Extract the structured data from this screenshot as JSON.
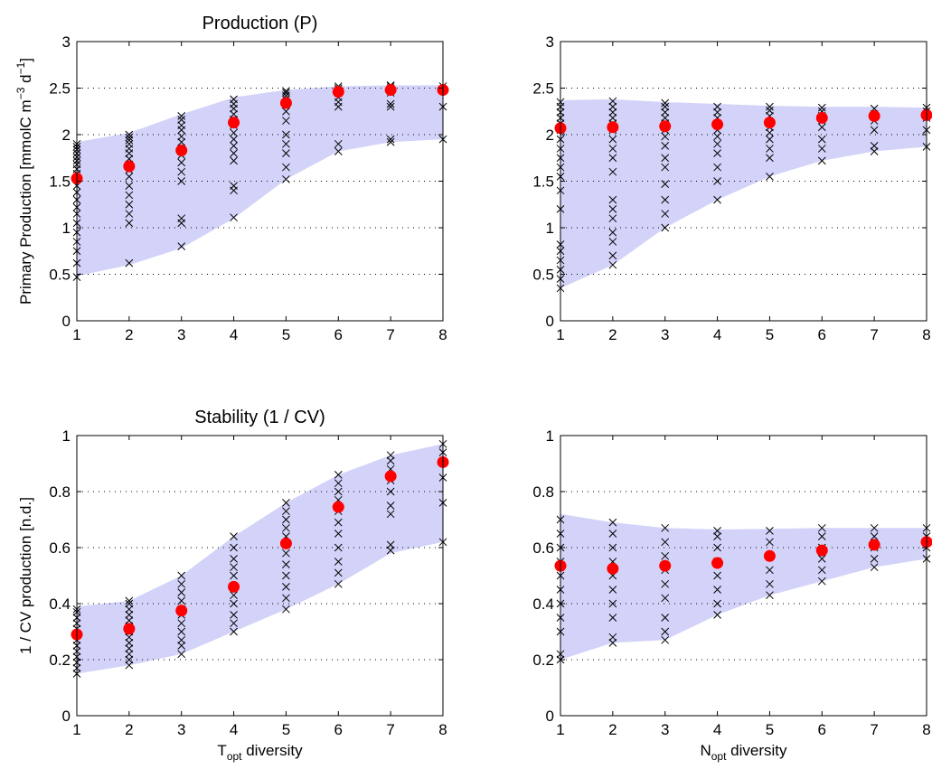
{
  "chart_data": [
    {
      "type": "scatter",
      "title": "Production (P)",
      "xlabel": "",
      "ylabel": "Primary Production [mmolC m^-3 d^-1]",
      "ylabel_parts": {
        "main": "Primary Production [mmolC m",
        "exp1": "−3",
        "mid": " d",
        "exp2": "−1",
        "end": "]"
      },
      "xlim": [
        1,
        8
      ],
      "ylim": [
        0,
        3
      ],
      "xticks": [
        1,
        2,
        3,
        4,
        5,
        6,
        7,
        8
      ],
      "yticks": [
        0,
        0.5,
        1,
        1.5,
        2,
        2.5,
        3
      ],
      "ytick_labels": [
        "0",
        "0.5",
        "1",
        "1.5",
        "2",
        "2.5",
        "3"
      ],
      "grid": "y-dotted",
      "band": {
        "x": [
          1,
          2,
          3,
          4,
          5,
          6,
          7,
          8
        ],
        "lower": [
          0.48,
          0.6,
          0.78,
          1.1,
          1.52,
          1.82,
          1.92,
          1.95
        ],
        "upper": [
          1.92,
          2.02,
          2.22,
          2.4,
          2.48,
          2.52,
          2.53,
          2.53
        ]
      },
      "means": {
        "x": [
          1,
          2,
          3,
          4,
          5,
          6,
          7,
          8
        ],
        "y": [
          1.53,
          1.66,
          1.83,
          2.13,
          2.34,
          2.46,
          2.48,
          2.48
        ]
      },
      "samples": [
        {
          "x": 1,
          "y": [
            0.47,
            0.62,
            0.75,
            0.85,
            0.95,
            1.05,
            1.15,
            1.22,
            1.3,
            1.38,
            1.45,
            1.52,
            1.58,
            1.63,
            1.68,
            1.72,
            1.76,
            1.8,
            1.84,
            1.87,
            1.9
          ]
        },
        {
          "x": 2,
          "y": [
            0.62,
            1.05,
            1.15,
            1.25,
            1.35,
            1.45,
            1.55,
            1.62,
            1.68,
            1.74,
            1.8,
            1.85,
            1.9,
            1.94,
            1.97,
            2.0
          ]
        },
        {
          "x": 3,
          "y": [
            0.8,
            1.05,
            1.1,
            1.5,
            1.6,
            1.7,
            1.78,
            1.85,
            1.92,
            1.98,
            2.05,
            2.1,
            2.16,
            2.2
          ]
        },
        {
          "x": 4,
          "y": [
            1.11,
            1.4,
            1.45,
            1.72,
            1.8,
            1.88,
            1.95,
            2.02,
            2.1,
            2.16,
            2.22,
            2.28,
            2.33,
            2.38
          ]
        },
        {
          "x": 5,
          "y": [
            1.52,
            1.65,
            1.8,
            1.9,
            2.0,
            2.15,
            2.25,
            2.32,
            2.38,
            2.42,
            2.45,
            2.47
          ]
        },
        {
          "x": 6,
          "y": [
            1.82,
            1.9,
            2.3,
            2.35,
            2.4,
            2.45,
            2.48,
            2.5,
            2.52
          ]
        },
        {
          "x": 7,
          "y": [
            1.92,
            1.95,
            2.3,
            2.33,
            2.45,
            2.5,
            2.52,
            2.53
          ]
        },
        {
          "x": 8,
          "y": [
            1.95,
            2.3,
            2.48,
            2.52
          ]
        }
      ]
    },
    {
      "type": "scatter",
      "title": "",
      "xlabel": "",
      "ylabel": "",
      "xlim": [
        1,
        8
      ],
      "ylim": [
        0,
        3
      ],
      "xticks": [
        1,
        2,
        3,
        4,
        5,
        6,
        7,
        8
      ],
      "yticks": [
        0,
        0.5,
        1,
        1.5,
        2,
        2.5,
        3
      ],
      "ytick_labels": [
        "0",
        "0.5",
        "1",
        "1.5",
        "2",
        "2.5",
        "3"
      ],
      "grid": "y-dotted",
      "band": {
        "x": [
          1,
          2,
          3,
          4,
          5,
          6,
          7,
          8
        ],
        "lower": [
          0.35,
          0.6,
          1.0,
          1.3,
          1.55,
          1.72,
          1.82,
          1.87
        ],
        "upper": [
          2.37,
          2.38,
          2.35,
          2.33,
          2.31,
          2.3,
          2.3,
          2.29
        ]
      },
      "means": {
        "x": [
          1,
          2,
          3,
          4,
          5,
          6,
          7,
          8
        ],
        "y": [
          2.07,
          2.08,
          2.09,
          2.11,
          2.13,
          2.18,
          2.2,
          2.21
        ]
      },
      "samples": [
        {
          "x": 1,
          "y": [
            0.35,
            0.45,
            0.55,
            0.65,
            0.75,
            0.82,
            1.2,
            1.4,
            1.55,
            1.65,
            1.75,
            1.85,
            1.95,
            2.05,
            2.12,
            2.18,
            2.24,
            2.3,
            2.35
          ]
        },
        {
          "x": 2,
          "y": [
            0.6,
            0.7,
            0.85,
            0.95,
            1.1,
            1.2,
            1.3,
            1.6,
            1.75,
            1.85,
            1.95,
            2.05,
            2.12,
            2.18,
            2.24,
            2.3,
            2.36
          ]
        },
        {
          "x": 3,
          "y": [
            1.0,
            1.15,
            1.3,
            1.47,
            1.65,
            1.75,
            1.88,
            1.98,
            2.05,
            2.12,
            2.18,
            2.24,
            2.3,
            2.34
          ]
        },
        {
          "x": 4,
          "y": [
            1.3,
            1.5,
            1.65,
            1.8,
            1.9,
            1.98,
            2.05,
            2.12,
            2.18,
            2.24,
            2.3
          ]
        },
        {
          "x": 5,
          "y": [
            1.55,
            1.75,
            1.85,
            1.95,
            2.02,
            2.08,
            2.14,
            2.2,
            2.26,
            2.3
          ]
        },
        {
          "x": 6,
          "y": [
            1.72,
            1.85,
            1.95,
            2.08,
            2.15,
            2.2,
            2.25,
            2.29
          ]
        },
        {
          "x": 7,
          "y": [
            1.82,
            1.88,
            2.05,
            2.15,
            2.22,
            2.28
          ]
        },
        {
          "x": 8,
          "y": [
            1.87,
            2.05,
            2.18,
            2.25,
            2.29
          ]
        }
      ]
    },
    {
      "type": "scatter",
      "title": "Stability (1 / CV)",
      "xlabel": "T_opt diversity",
      "xlabel_parts": {
        "main": "T",
        "sub": "opt",
        "end": " diversity"
      },
      "ylabel": "1 / CV production [n.d.]",
      "xlim": [
        1,
        8
      ],
      "ylim": [
        0,
        1
      ],
      "xticks": [
        1,
        2,
        3,
        4,
        5,
        6,
        7,
        8
      ],
      "yticks": [
        0,
        0.2,
        0.4,
        0.6,
        0.8,
        1
      ],
      "ytick_labels": [
        "0",
        "0.2",
        "0.4",
        "0.6",
        "0.8",
        "1"
      ],
      "grid": "y-dotted",
      "band": {
        "x": [
          1,
          2,
          3,
          4,
          5,
          6,
          7,
          8
        ],
        "lower": [
          0.15,
          0.18,
          0.22,
          0.3,
          0.38,
          0.47,
          0.58,
          0.62
        ],
        "upper": [
          0.39,
          0.41,
          0.5,
          0.64,
          0.76,
          0.86,
          0.93,
          0.97
        ]
      },
      "means": {
        "x": [
          1,
          2,
          3,
          4,
          5,
          6,
          7,
          8
        ],
        "y": [
          0.29,
          0.31,
          0.375,
          0.46,
          0.615,
          0.745,
          0.855,
          0.905
        ]
      },
      "samples": [
        {
          "x": 1,
          "y": [
            0.15,
            0.17,
            0.19,
            0.21,
            0.23,
            0.25,
            0.27,
            0.29,
            0.31,
            0.33,
            0.35,
            0.37,
            0.38
          ]
        },
        {
          "x": 2,
          "y": [
            0.18,
            0.2,
            0.22,
            0.24,
            0.26,
            0.28,
            0.3,
            0.32,
            0.34,
            0.36,
            0.38,
            0.4,
            0.41
          ]
        },
        {
          "x": 3,
          "y": [
            0.22,
            0.25,
            0.27,
            0.3,
            0.33,
            0.36,
            0.38,
            0.41,
            0.44,
            0.47,
            0.5
          ]
        },
        {
          "x": 4,
          "y": [
            0.3,
            0.33,
            0.36,
            0.4,
            0.43,
            0.46,
            0.5,
            0.53,
            0.56,
            0.6,
            0.64
          ]
        },
        {
          "x": 5,
          "y": [
            0.38,
            0.42,
            0.46,
            0.5,
            0.54,
            0.58,
            0.61,
            0.64,
            0.67,
            0.7,
            0.73,
            0.76
          ]
        },
        {
          "x": 6,
          "y": [
            0.47,
            0.51,
            0.55,
            0.6,
            0.65,
            0.69,
            0.73,
            0.77,
            0.8,
            0.83,
            0.86
          ]
        },
        {
          "x": 7,
          "y": [
            0.59,
            0.61,
            0.72,
            0.75,
            0.8,
            0.84,
            0.88,
            0.91,
            0.93
          ]
        },
        {
          "x": 8,
          "y": [
            0.62,
            0.76,
            0.85,
            0.94,
            0.97
          ]
        }
      ]
    },
    {
      "type": "scatter",
      "title": "",
      "xlabel": "N_opt diversity",
      "xlabel_parts": {
        "main": "N",
        "sub": "opt",
        "end": " diversity"
      },
      "ylabel": "",
      "xlim": [
        1,
        8
      ],
      "ylim": [
        0,
        1
      ],
      "xticks": [
        1,
        2,
        3,
        4,
        5,
        6,
        7,
        8
      ],
      "yticks": [
        0,
        0.2,
        0.4,
        0.6,
        0.8,
        1
      ],
      "ytick_labels": [
        "0",
        "0.2",
        "0.4",
        "0.6",
        "0.8",
        "1"
      ],
      "grid": "y-dotted",
      "band": {
        "x": [
          1,
          2,
          3,
          4,
          5,
          6,
          7,
          8
        ],
        "lower": [
          0.2,
          0.26,
          0.27,
          0.36,
          0.43,
          0.48,
          0.53,
          0.56
        ],
        "upper": [
          0.72,
          0.69,
          0.67,
          0.665,
          0.667,
          0.67,
          0.67,
          0.67
        ]
      },
      "means": {
        "x": [
          1,
          2,
          3,
          4,
          5,
          6,
          7,
          8
        ],
        "y": [
          0.535,
          0.525,
          0.535,
          0.545,
          0.57,
          0.59,
          0.61,
          0.62
        ]
      },
      "samples": [
        {
          "x": 1,
          "y": [
            0.2,
            0.22,
            0.3,
            0.35,
            0.4,
            0.45,
            0.5,
            0.55,
            0.6,
            0.65,
            0.7
          ]
        },
        {
          "x": 2,
          "y": [
            0.26,
            0.28,
            0.35,
            0.4,
            0.45,
            0.5,
            0.55,
            0.6,
            0.65,
            0.69
          ]
        },
        {
          "x": 3,
          "y": [
            0.27,
            0.3,
            0.35,
            0.42,
            0.47,
            0.52,
            0.57,
            0.62,
            0.67
          ]
        },
        {
          "x": 4,
          "y": [
            0.36,
            0.4,
            0.45,
            0.5,
            0.55,
            0.6,
            0.64,
            0.66
          ]
        },
        {
          "x": 5,
          "y": [
            0.43,
            0.47,
            0.52,
            0.57,
            0.62,
            0.66
          ]
        },
        {
          "x": 6,
          "y": [
            0.48,
            0.52,
            0.56,
            0.6,
            0.64,
            0.67
          ]
        },
        {
          "x": 7,
          "y": [
            0.53,
            0.56,
            0.6,
            0.64,
            0.67
          ]
        },
        {
          "x": 8,
          "y": [
            0.56,
            0.6,
            0.64,
            0.67
          ]
        }
      ]
    }
  ],
  "colors": {
    "band": "#d3d3f9",
    "mean": "#ff0000",
    "marker": "#000000",
    "axis": "#000000",
    "grid": "#000000"
  }
}
